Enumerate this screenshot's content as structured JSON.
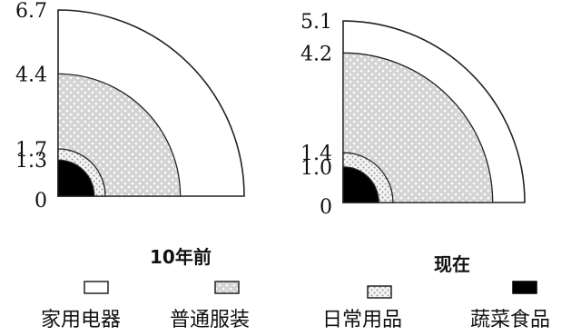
{
  "chart_data": [
    {
      "type": "radial-area",
      "title": "10年前",
      "categories": [
        "蔬菜食品",
        "日常用品",
        "普通服装",
        "家用电器"
      ],
      "radii": [
        1.3,
        1.7,
        4.4,
        6.7
      ],
      "ticks": [
        "0",
        "1.3",
        "1.7",
        "4.4",
        "6.7"
      ],
      "ylim": [
        0,
        6.7
      ]
    },
    {
      "type": "radial-area",
      "title": "现在",
      "categories": [
        "蔬菜食品",
        "日常用品",
        "普通服装",
        "家用电器"
      ],
      "radii": [
        1.0,
        1.4,
        4.2,
        5.1
      ],
      "ticks": [
        "0",
        "1.0",
        "1.4",
        "4.2",
        "5.1"
      ],
      "ylim": [
        0,
        5.1
      ]
    }
  ],
  "legend": [
    {
      "label": "家用电器",
      "fill": "#ffffff"
    },
    {
      "label": "普通服装",
      "fill": "#d4d4d4"
    },
    {
      "label": "日常用品",
      "fill": "#ececec"
    },
    {
      "label": "蔬菜食品",
      "fill": "#000000"
    }
  ],
  "colors": {
    "appliances": "#ffffff",
    "clothing": "#d4d4d4",
    "daily": "#ececec",
    "food": "#000000",
    "outline": "#222222"
  }
}
